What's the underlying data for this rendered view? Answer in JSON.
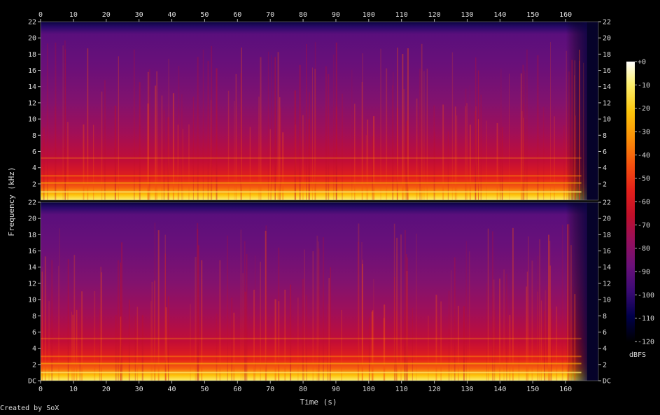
{
  "chart_data": {
    "type": "heatmap",
    "xlabel": "Time (s)",
    "ylabel": "Frequency (kHz)",
    "x_ticks": [
      "0",
      "10",
      "20",
      "30",
      "40",
      "50",
      "60",
      "70",
      "80",
      "90",
      "100",
      "110",
      "120",
      "130",
      "140",
      "150",
      "160"
    ],
    "xlim": [
      0,
      170
    ],
    "y_ticks_upper": [
      "2",
      "4",
      "6",
      "8",
      "10",
      "12",
      "14",
      "16",
      "18",
      "20",
      "22"
    ],
    "y_ticks_lower": [
      "DC",
      "2",
      "4",
      "6",
      "8",
      "10",
      "12",
      "14",
      "16",
      "18",
      "20",
      "22"
    ],
    "ylim": [
      0,
      22
    ],
    "channels": 2,
    "audio_end_s": 166.5,
    "colorbar": {
      "unit": "dBFS",
      "ticks": [
        "+0",
        "-10",
        "-20",
        "-30",
        "-40",
        "-50",
        "-60",
        "-70",
        "-80",
        "-90",
        "-100",
        "-110",
        "-120"
      ],
      "range": [
        -120,
        0
      ]
    },
    "colors": {
      "background": "#000000",
      "cmap": [
        "#000000",
        "#00004a",
        "#3a0a74",
        "#6a1079",
        "#950f5c",
        "#c00f2a",
        "#e4201a",
        "#f5500e",
        "#fb8c08",
        "#fcc40a",
        "#fdf070",
        "#ffffff"
      ]
    }
  },
  "credit": "Created by SoX"
}
